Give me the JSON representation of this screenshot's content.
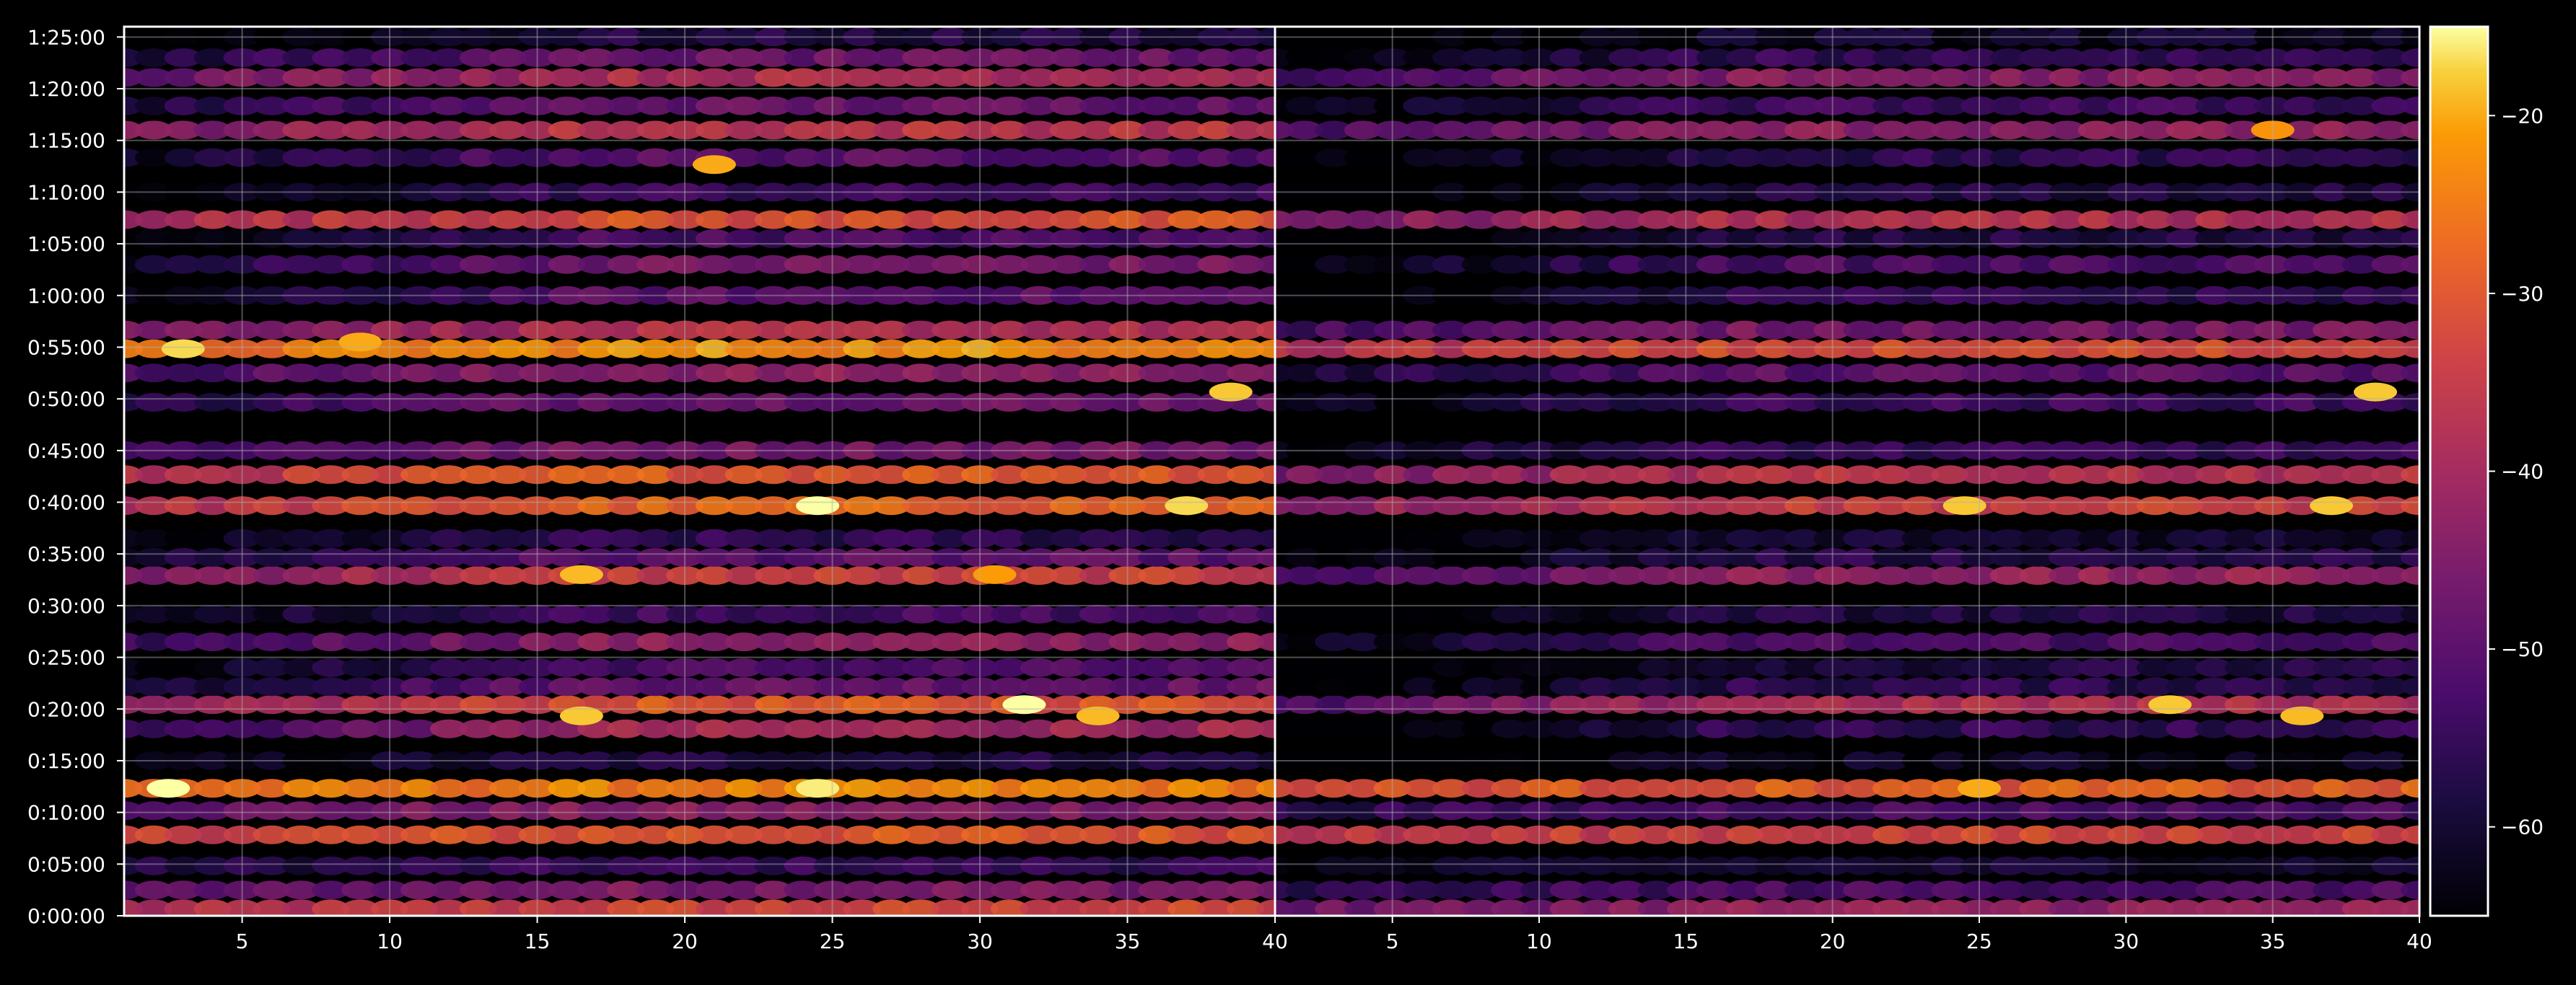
{
  "chart_data": {
    "type": "heatmap",
    "title": "",
    "xlabel": "",
    "ylabel": "",
    "panels": [
      {
        "name": "left",
        "xlim": [
          1,
          40
        ],
        "xticks": [
          5,
          10,
          15,
          20,
          25,
          30,
          35,
          40
        ],
        "xtick_labels": [
          "5",
          "10",
          "15",
          "20",
          "25",
          "30",
          "35",
          "40"
        ]
      },
      {
        "name": "right",
        "xlim": [
          1,
          40
        ],
        "xticks": [
          5,
          10,
          15,
          20,
          25,
          30,
          35,
          40
        ],
        "xtick_labels": [
          "5",
          "10",
          "15",
          "20",
          "25",
          "30",
          "35",
          "40"
        ]
      }
    ],
    "ylim_seconds": [
      0,
      5160
    ],
    "yticks_seconds": [
      0,
      300,
      600,
      900,
      1200,
      1500,
      1800,
      2100,
      2400,
      2700,
      3000,
      3300,
      3600,
      3900,
      4200,
      4500,
      4800,
      5100
    ],
    "ytick_labels": [
      "0:00:00",
      "0:05:00",
      "0:10:00",
      "0:15:00",
      "0:20:00",
      "0:25:00",
      "0:30:00",
      "0:35:00",
      "0:40:00",
      "0:45:00",
      "0:50:00",
      "0:55:00",
      "1:00:00",
      "1:05:00",
      "1:10:00",
      "1:15:00",
      "1:20:00",
      "1:25:00"
    ],
    "grid": true,
    "colormap": "inferno",
    "colorbar": {
      "range": [
        -65,
        -15
      ],
      "ticks": [
        -20,
        -30,
        -40,
        -50,
        -60
      ],
      "tick_labels": [
        "−20",
        "−30",
        "−40",
        "−50",
        "−60"
      ]
    },
    "rows": [
      {
        "t": 40,
        "left": -33,
        "right": -42,
        "ramp": 0.35
      },
      {
        "t": 150,
        "left": -45,
        "right": -52,
        "ramp": 0.3
      },
      {
        "t": 290,
        "left": -55,
        "right": -60,
        "ramp": 0.2
      },
      {
        "t": 470,
        "left": -30,
        "right": -33,
        "ramp": 0.2
      },
      {
        "t": 610,
        "left": -44,
        "right": -52,
        "ramp": 0.25
      },
      {
        "t": 740,
        "left": -24,
        "right": -29,
        "ramp": 0.15
      },
      {
        "t": 900,
        "left": -58,
        "right": -62,
        "ramp": 0.4
      },
      {
        "t": 1085,
        "left": -40,
        "right": -55,
        "ramp": 0.9
      },
      {
        "t": 1225,
        "left": -30,
        "right": -38,
        "ramp": 0.85
      },
      {
        "t": 1330,
        "left": -48,
        "right": -56,
        "ramp": 0.65
      },
      {
        "t": 1440,
        "left": -52,
        "right": -58,
        "ramp": 0.7
      },
      {
        "t": 1590,
        "left": -43,
        "right": -52,
        "ramp": 0.65
      },
      {
        "t": 1750,
        "left": -53,
        "right": -58,
        "ramp": 0.6
      },
      {
        "t": 1975,
        "left": -34,
        "right": -42,
        "ramp": 0.6
      },
      {
        "t": 2080,
        "left": -50,
        "right": -57,
        "ramp": 0.55
      },
      {
        "t": 2190,
        "left": -56,
        "right": -60,
        "ramp": 0.5
      },
      {
        "t": 2380,
        "left": -28,
        "right": -34,
        "ramp": 0.55
      },
      {
        "t": 2560,
        "left": -29,
        "right": -37,
        "ramp": 0.5
      },
      {
        "t": 2700,
        "left": -46,
        "right": -55,
        "ramp": 0.4
      },
      {
        "t": 2980,
        "left": -47,
        "right": -54,
        "ramp": 0.6
      },
      {
        "t": 3150,
        "left": -43,
        "right": -50,
        "ramp": 0.55
      },
      {
        "t": 3290,
        "left": -22,
        "right": -32,
        "ramp": 0.3
      },
      {
        "t": 3400,
        "left": -38,
        "right": -46,
        "ramp": 0.4
      },
      {
        "t": 3600,
        "left": -50,
        "right": -56,
        "ramp": 0.8
      },
      {
        "t": 3780,
        "left": -46,
        "right": -52,
        "ramp": 0.8
      },
      {
        "t": 3930,
        "left": -52,
        "right": -58,
        "ramp": 0.8
      },
      {
        "t": 4040,
        "left": -31,
        "right": -38,
        "ramp": 0.45
      },
      {
        "t": 4200,
        "left": -54,
        "right": -58,
        "ramp": 0.7
      },
      {
        "t": 4400,
        "left": -50,
        "right": -56,
        "ramp": 0.65
      },
      {
        "t": 4560,
        "left": -36,
        "right": -43,
        "ramp": 0.5
      },
      {
        "t": 4700,
        "left": -48,
        "right": -54,
        "ramp": 0.6
      },
      {
        "t": 4865,
        "left": -38,
        "right": -44,
        "ramp": 0.55
      },
      {
        "t": 4980,
        "left": -48,
        "right": -55,
        "ramp": 0.6
      },
      {
        "t": 5100,
        "left": -58,
        "right": -61,
        "ramp": 0.5
      }
    ],
    "hotspots": [
      {
        "panel": "left",
        "x": 2.5,
        "t": 740,
        "value": -15
      },
      {
        "panel": "left",
        "x": 24.5,
        "t": 740,
        "value": -16
      },
      {
        "panel": "left",
        "x": 31.5,
        "t": 1225,
        "value": -15
      },
      {
        "panel": "left",
        "x": 16.5,
        "t": 1160,
        "value": -18
      },
      {
        "panel": "left",
        "x": 34,
        "t": 1160,
        "value": -19
      },
      {
        "panel": "left",
        "x": 24.5,
        "t": 2380,
        "value": -15
      },
      {
        "panel": "left",
        "x": 37,
        "t": 2380,
        "value": -17
      },
      {
        "panel": "left",
        "x": 3,
        "t": 3290,
        "value": -17
      },
      {
        "panel": "left",
        "x": 9,
        "t": 3330,
        "value": -20
      },
      {
        "panel": "left",
        "x": 38.5,
        "t": 3040,
        "value": -18
      },
      {
        "panel": "left",
        "x": 21,
        "t": 4360,
        "value": -20
      },
      {
        "panel": "left",
        "x": 16.5,
        "t": 1980,
        "value": -19
      },
      {
        "panel": "left",
        "x": 30.5,
        "t": 1980,
        "value": -21
      },
      {
        "panel": "right",
        "x": 31.5,
        "t": 1225,
        "value": -18
      },
      {
        "panel": "right",
        "x": 36,
        "t": 1160,
        "value": -19
      },
      {
        "panel": "right",
        "x": 24.5,
        "t": 2380,
        "value": -18
      },
      {
        "panel": "right",
        "x": 37,
        "t": 2380,
        "value": -18
      },
      {
        "panel": "right",
        "x": 25,
        "t": 740,
        "value": -20
      },
      {
        "panel": "right",
        "x": 38.5,
        "t": 3040,
        "value": -18
      },
      {
        "panel": "right",
        "x": 35,
        "t": 4560,
        "value": -22
      }
    ]
  }
}
